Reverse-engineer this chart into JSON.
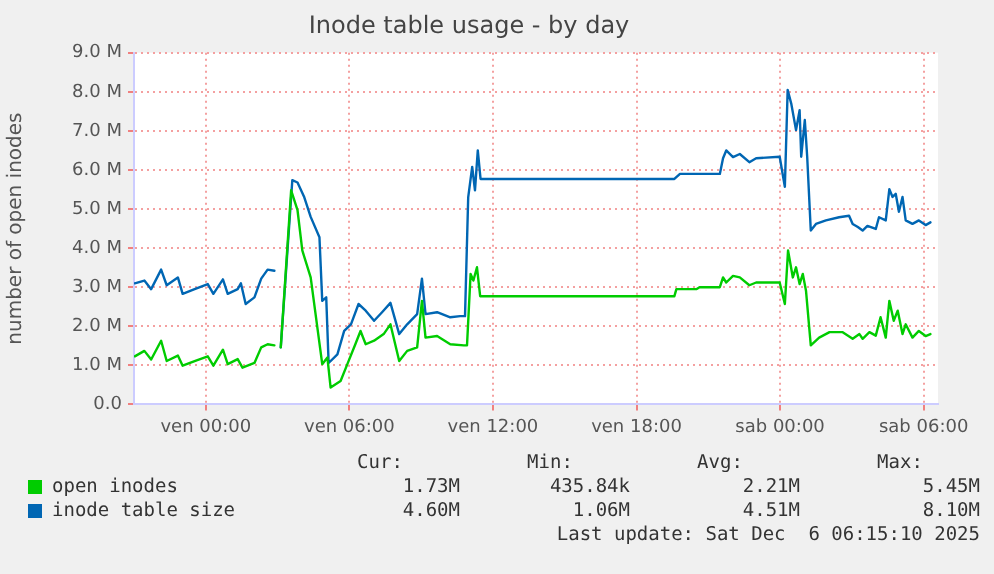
{
  "chart_data": {
    "type": "line",
    "title": "Inode table usage - by day",
    "ylabel": "number of open inodes",
    "xlim": [
      "2025-12-04T21:00",
      "2025-12-06T06:36"
    ],
    "xticks": [
      {
        "value": "2025-12-05T00:00",
        "label": "ven 00:00"
      },
      {
        "value": "2025-12-05T06:00",
        "label": "ven 06:00"
      },
      {
        "value": "2025-12-05T12:00",
        "label": "ven 12:00"
      },
      {
        "value": "2025-12-05T18:00",
        "label": "ven 18:00"
      },
      {
        "value": "2025-12-06T00:00",
        "label": "sab 00:00"
      },
      {
        "value": "2025-12-06T06:00",
        "label": "sab 06:00"
      }
    ],
    "ylim": [
      0,
      9
    ],
    "yticks": [
      {
        "value": 0,
        "label": "0.0"
      },
      {
        "value": 1,
        "label": "1.0 M"
      },
      {
        "value": 2,
        "label": "2.0 M"
      },
      {
        "value": 3,
        "label": "3.0 M"
      },
      {
        "value": 4,
        "label": "4.0 M"
      },
      {
        "value": 5,
        "label": "5.0 M"
      },
      {
        "value": 6,
        "label": "6.0 M"
      },
      {
        "value": 7,
        "label": "7.0 M"
      },
      {
        "value": 8,
        "label": "8.0 M"
      },
      {
        "value": 9,
        "label": "9.0 M"
      }
    ],
    "grid": true,
    "legend": "bottom",
    "marker": "none",
    "line_style": "solid",
    "series": [
      {
        "name": "open inodes",
        "color": "#00cc00",
        "x": [
          "2025-12-04T21:02",
          "2025-12-04T21:26",
          "2025-12-04T21:43",
          "2025-12-04T22:08",
          "2025-12-04T22:22",
          "2025-12-04T22:50",
          "2025-12-04T23:02",
          "2025-12-04T23:32",
          "2025-12-05T00:05",
          "2025-12-05T00:19",
          "2025-12-05T00:43",
          "2025-12-05T00:55",
          "2025-12-05T01:20",
          "2025-12-05T01:32",
          "2025-12-05T02:02",
          "2025-12-05T02:19",
          "2025-12-05T02:35",
          "2025-12-05T02:52",
          "2025-12-05T03:00",
          "2025-12-05T03:08",
          "2025-12-05T03:34",
          "2025-12-05T03:50",
          "2025-12-05T04:02",
          "2025-12-05T04:23",
          "2025-12-05T04:52",
          "2025-12-05T05:05",
          "2025-12-05T05:13",
          "2025-12-05T05:38",
          "2025-12-05T05:55",
          "2025-12-05T06:15",
          "2025-12-05T06:28",
          "2025-12-05T06:41",
          "2025-12-05T07:02",
          "2025-12-05T07:26",
          "2025-12-05T07:43",
          "2025-12-05T08:05",
          "2025-12-05T08:25",
          "2025-12-05T08:50",
          "2025-12-05T09:02",
          "2025-12-05T09:11",
          "2025-12-05T09:40",
          "2025-12-05T10:13",
          "2025-12-05T10:47",
          "2025-12-05T10:55",
          "2025-12-05T11:04",
          "2025-12-05T11:11",
          "2025-12-05T11:20",
          "2025-12-05T11:28",
          "2025-12-05T19:35",
          "2025-12-05T19:40",
          "2025-12-05T20:30",
          "2025-12-05T20:38",
          "2025-12-05T21:29",
          "2025-12-05T21:37",
          "2025-12-05T21:45",
          "2025-12-05T22:02",
          "2025-12-05T22:19",
          "2025-12-05T22:43",
          "2025-12-05T23:00",
          "2025-12-05T23:59",
          "2025-12-06T00:12",
          "2025-12-06T00:20",
          "2025-12-06T00:32",
          "2025-12-06T00:40",
          "2025-12-06T00:49",
          "2025-12-06T00:57",
          "2025-12-06T01:05",
          "2025-12-06T01:17",
          "2025-12-06T01:38",
          "2025-12-06T02:04",
          "2025-12-06T02:37",
          "2025-12-06T03:02",
          "2025-12-06T03:19",
          "2025-12-06T03:27",
          "2025-12-06T03:44",
          "2025-12-06T04:00",
          "2025-12-06T04:12",
          "2025-12-06T04:25",
          "2025-12-06T04:34",
          "2025-12-06T04:45",
          "2025-12-06T04:55",
          "2025-12-06T05:07",
          "2025-12-06T05:15",
          "2025-12-06T05:32",
          "2025-12-06T05:48",
          "2025-12-06T06:05",
          "2025-12-06T06:17"
        ],
        "values": [
          1.23,
          1.37,
          1.15,
          1.63,
          1.11,
          1.25,
          0.99,
          1.11,
          1.23,
          0.99,
          1.4,
          1.03,
          1.16,
          0.94,
          1.06,
          1.46,
          1.54,
          1.51,
          null,
          1.46,
          5.48,
          4.97,
          3.94,
          3.25,
          1.03,
          1.2,
          0.43,
          0.6,
          1.03,
          1.54,
          1.88,
          1.54,
          1.63,
          1.8,
          2.05,
          1.11,
          1.37,
          1.46,
          2.65,
          1.71,
          1.75,
          1.54,
          1.51,
          1.51,
          3.34,
          3.17,
          3.51,
          2.77,
          2.77,
          2.95,
          2.95,
          3.0,
          3.0,
          3.25,
          3.12,
          3.29,
          3.25,
          3.05,
          3.12,
          3.12,
          2.57,
          3.94,
          3.25,
          3.51,
          3.08,
          3.34,
          2.91,
          1.51,
          1.71,
          1.85,
          1.85,
          1.68,
          1.8,
          1.68,
          1.85,
          1.76,
          2.23,
          1.71,
          2.65,
          2.14,
          2.4,
          1.8,
          2.05,
          1.71,
          1.88,
          1.75,
          1.8
        ]
      },
      {
        "name": "inode table size",
        "color": "#0066b3",
        "x": [
          "2025-12-04T21:02",
          "2025-12-04T21:26",
          "2025-12-04T21:43",
          "2025-12-04T22:08",
          "2025-12-04T22:22",
          "2025-12-04T22:50",
          "2025-12-04T23:02",
          "2025-12-04T23:32",
          "2025-12-05T00:05",
          "2025-12-05T00:19",
          "2025-12-05T00:43",
          "2025-12-05T00:55",
          "2025-12-05T01:20",
          "2025-12-05T01:28",
          "2025-12-05T01:40",
          "2025-12-05T02:02",
          "2025-12-05T02:19",
          "2025-12-05T02:35",
          "2025-12-05T02:52",
          "2025-12-05T03:00",
          "2025-12-05T03:08",
          "2025-12-05T03:37",
          "2025-12-05T03:50",
          "2025-12-05T04:07",
          "2025-12-05T04:23",
          "2025-12-05T04:45",
          "2025-12-05T04:52",
          "2025-12-05T05:02",
          "2025-12-05T05:08",
          "2025-12-05T05:30",
          "2025-12-05T05:47",
          "2025-12-05T06:04",
          "2025-12-05T06:23",
          "2025-12-05T06:41",
          "2025-12-05T07:02",
          "2025-12-05T07:22",
          "2025-12-05T07:43",
          "2025-12-05T08:05",
          "2025-12-05T08:25",
          "2025-12-05T08:50",
          "2025-12-05T09:02",
          "2025-12-05T09:11",
          "2025-12-05T09:40",
          "2025-12-05T10:13",
          "2025-12-05T10:38",
          "2025-12-05T10:50",
          "2025-12-05T10:58",
          "2025-12-05T11:08",
          "2025-12-05T11:15",
          "2025-12-05T11:22",
          "2025-12-05T11:29",
          "2025-12-05T19:35",
          "2025-12-05T19:49",
          "2025-12-05T21:29",
          "2025-12-05T21:37",
          "2025-12-05T21:45",
          "2025-12-05T22:02",
          "2025-12-05T22:19",
          "2025-12-05T22:43",
          "2025-12-05T23:00",
          "2025-12-05T23:59",
          "2025-12-06T00:12",
          "2025-12-06T00:19",
          "2025-12-06T00:28",
          "2025-12-06T00:40",
          "2025-12-06T00:49",
          "2025-12-06T00:53",
          "2025-12-06T01:02",
          "2025-12-06T01:08",
          "2025-12-06T01:17",
          "2025-12-06T01:30",
          "2025-12-06T01:55",
          "2025-12-06T02:28",
          "2025-12-06T02:53",
          "2025-12-06T03:02",
          "2025-12-06T03:15",
          "2025-12-06T03:27",
          "2025-12-06T03:39",
          "2025-12-06T04:00",
          "2025-12-06T04:08",
          "2025-12-06T04:25",
          "2025-12-06T04:34",
          "2025-12-06T04:42",
          "2025-12-06T04:50",
          "2025-12-06T04:58",
          "2025-12-06T05:07",
          "2025-12-06T05:15",
          "2025-12-06T05:32",
          "2025-12-06T05:48",
          "2025-12-06T06:05",
          "2025-12-06T06:17"
        ],
        "values": [
          3.1,
          3.17,
          2.95,
          3.45,
          3.05,
          3.25,
          2.83,
          2.95,
          3.08,
          2.83,
          3.2,
          2.83,
          2.95,
          3.1,
          2.57,
          2.74,
          3.22,
          3.45,
          3.42,
          null,
          1.46,
          5.74,
          5.68,
          5.3,
          4.8,
          4.28,
          2.65,
          2.74,
          1.06,
          1.28,
          1.88,
          2.05,
          2.57,
          2.4,
          2.14,
          2.36,
          2.6,
          1.8,
          2.05,
          2.31,
          3.22,
          2.31,
          2.36,
          2.23,
          2.26,
          2.26,
          5.3,
          6.08,
          5.48,
          6.5,
          5.77,
          5.77,
          5.9,
          5.9,
          6.3,
          6.5,
          6.33,
          6.41,
          6.2,
          6.3,
          6.34,
          5.57,
          8.05,
          7.7,
          7.02,
          7.53,
          6.34,
          7.28,
          6.34,
          4.45,
          4.62,
          4.71,
          4.79,
          4.83,
          4.62,
          4.54,
          4.45,
          4.57,
          4.49,
          4.79,
          4.71,
          5.51,
          5.31,
          5.39,
          4.93,
          5.31,
          4.71,
          4.62,
          4.71,
          4.59,
          4.66
        ]
      }
    ],
    "annotations": [
      "Cur:",
      "Min:",
      "Avg:",
      "Max:",
      "1.73M",
      "435.84k",
      "2.21M",
      "5.45M",
      "4.60M",
      "1.06M",
      "4.51M",
      "8.10M",
      "Last update: Sat Dec  6 06:15:10 2025"
    ]
  }
}
